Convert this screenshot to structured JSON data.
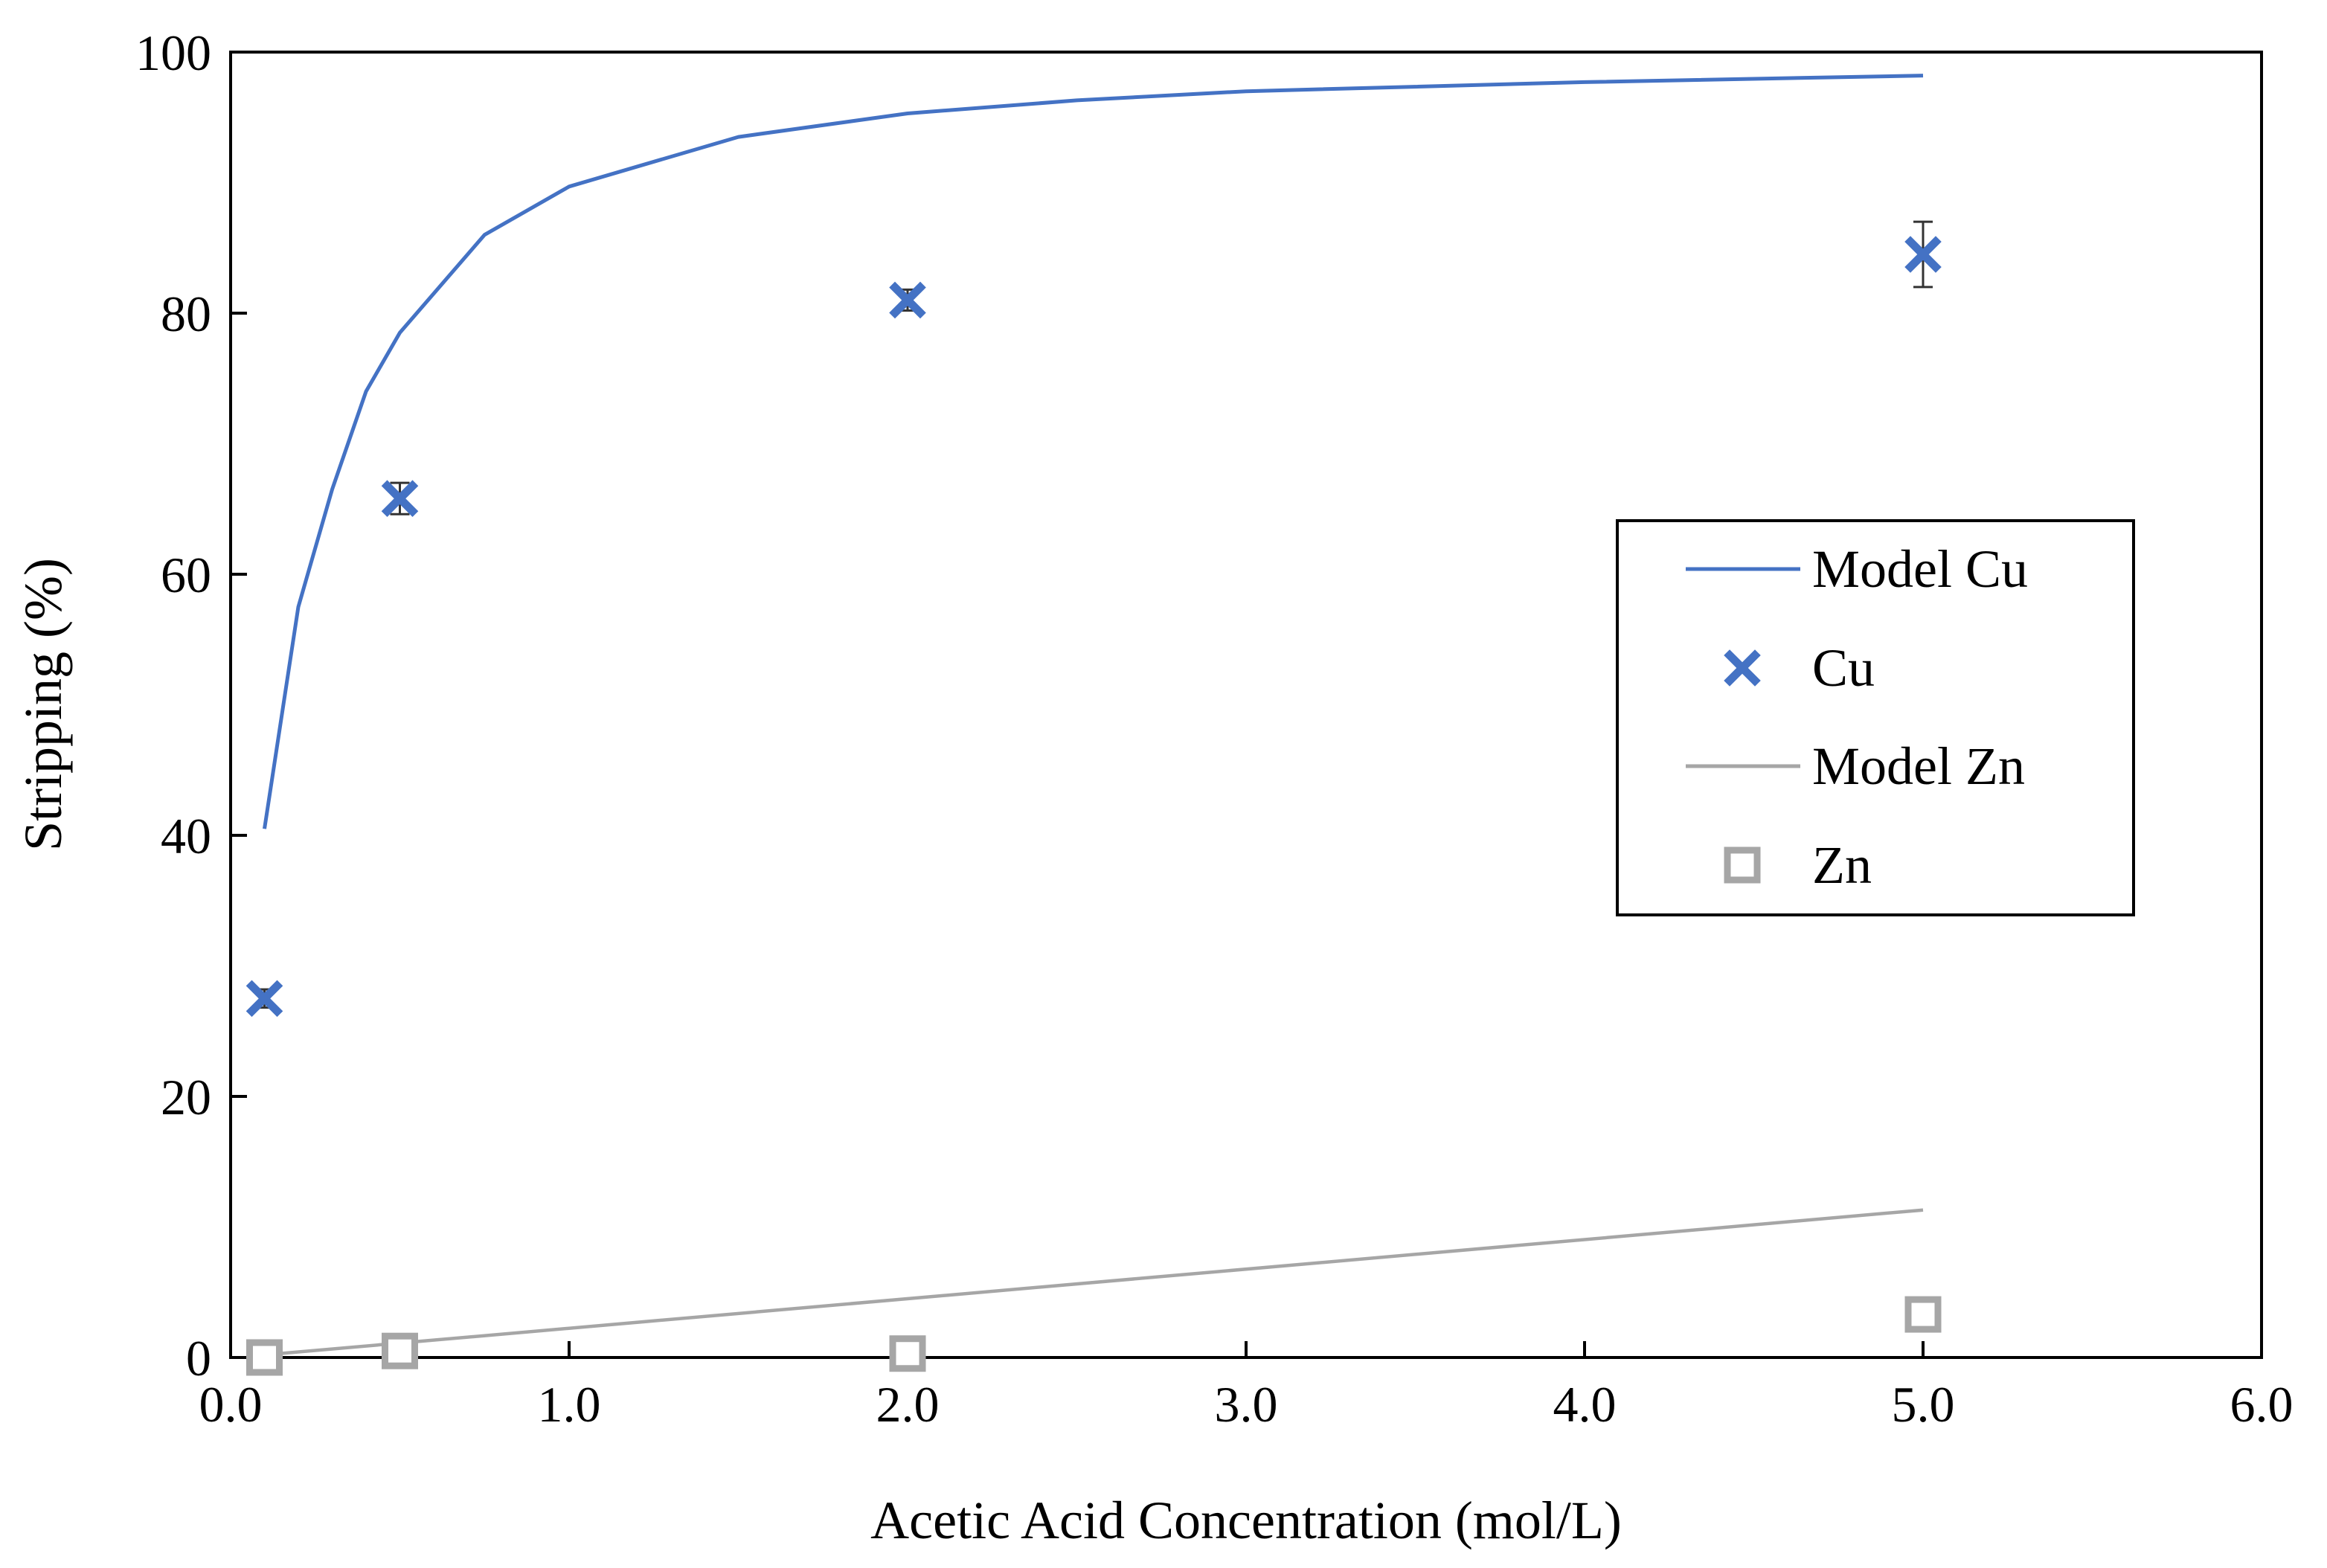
{
  "chart_data": {
    "type": "scatter",
    "title": "",
    "xlabel": "Acetic Acid Concentration (mol/L)",
    "ylabel": "Stripping (%)",
    "xlim": [
      0,
      6
    ],
    "ylim": [
      0,
      100
    ],
    "xticks": [
      0,
      1,
      2,
      3,
      4,
      5,
      6
    ],
    "xtick_labels": [
      "0.0",
      "1.0",
      "2.0",
      "3.0",
      "4.0",
      "5.0",
      "6.0"
    ],
    "yticks": [
      0,
      20,
      40,
      60,
      80,
      100
    ],
    "ytick_labels": [
      "0",
      "20",
      "40",
      "60",
      "80",
      "100"
    ],
    "grid": false,
    "legend_position": "right",
    "series": [
      {
        "name": "Model Cu",
        "kind": "line",
        "color": "#4472C4",
        "x": [
          0.1,
          0.2,
          0.3,
          0.4,
          0.5,
          0.75,
          1.0,
          1.5,
          2.0,
          2.5,
          3.0,
          4.0,
          5.0
        ],
        "y": [
          40.5,
          57.5,
          66.5,
          74.0,
          78.5,
          86.0,
          89.7,
          93.5,
          95.3,
          96.3,
          97.0,
          97.7,
          98.2
        ]
      },
      {
        "name": "Cu",
        "kind": "scatter",
        "marker": "x",
        "color": "#4472C4",
        "x": [
          0.1,
          0.5,
          2.0,
          5.0
        ],
        "y": [
          27.5,
          65.8,
          81.0,
          84.5
        ],
        "error": [
          0.7,
          1.2,
          0.8,
          2.5
        ]
      },
      {
        "name": "Model Zn",
        "kind": "line",
        "color": "#A6A6A6",
        "x": [
          0.1,
          5.0
        ],
        "y": [
          0.2,
          11.3
        ]
      },
      {
        "name": "Zn",
        "kind": "scatter",
        "marker": "square",
        "color": "#A6A6A6",
        "x": [
          0.1,
          0.5,
          2.0,
          5.0
        ],
        "y": [
          0.0,
          0.5,
          0.3,
          3.3
        ],
        "error": [
          0.2,
          0.4,
          0.5,
          0.8
        ]
      }
    ]
  }
}
